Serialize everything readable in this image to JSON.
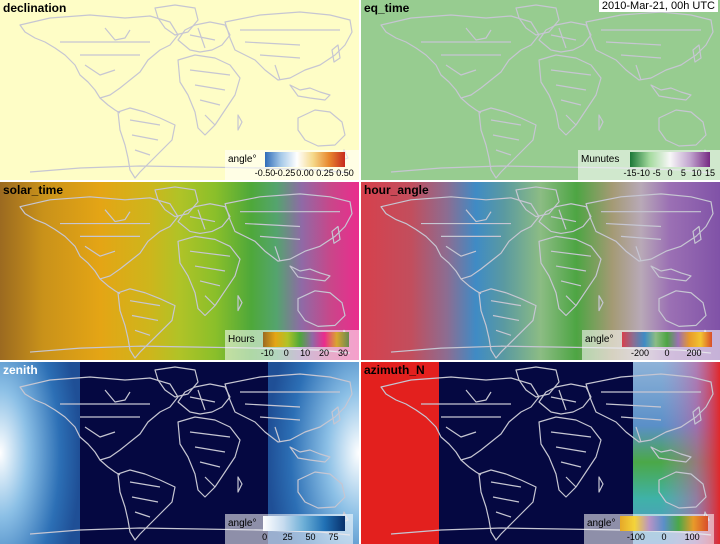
{
  "timestamp": "2010-Mar-21, 00h UTC",
  "colors": {
    "land_outline": "#c6c6d2",
    "night": "#050841"
  },
  "panels": [
    {
      "id": "declination",
      "title": "declination",
      "legend": {
        "title": "angle°",
        "ticks": [
          "-0.50",
          "-0.25",
          "0.00",
          "0.25",
          "0.50"
        ]
      }
    },
    {
      "id": "eq_time",
      "title": "eq_time",
      "legend": {
        "title": "Munutes",
        "ticks": [
          "-15",
          "-10",
          "-5",
          "0",
          "5",
          "10",
          "15"
        ]
      }
    },
    {
      "id": "solar_time",
      "title": "solar_time",
      "legend": {
        "title": "Hours",
        "ticks": [
          "-10",
          "0",
          "10",
          "20",
          "30"
        ]
      }
    },
    {
      "id": "hour_angle",
      "title": "hour_angle",
      "legend": {
        "title": "angle°",
        "ticks": [
          "-200",
          "0",
          "200"
        ]
      }
    },
    {
      "id": "zenith",
      "title": "zenith",
      "legend": {
        "title": "angle°",
        "ticks": [
          "0",
          "25",
          "50",
          "75"
        ]
      }
    },
    {
      "id": "azimuth_N",
      "title": "azimuth_N",
      "legend": {
        "title": "angle°",
        "ticks": [
          "-100",
          "0",
          "100"
        ]
      }
    }
  ]
}
